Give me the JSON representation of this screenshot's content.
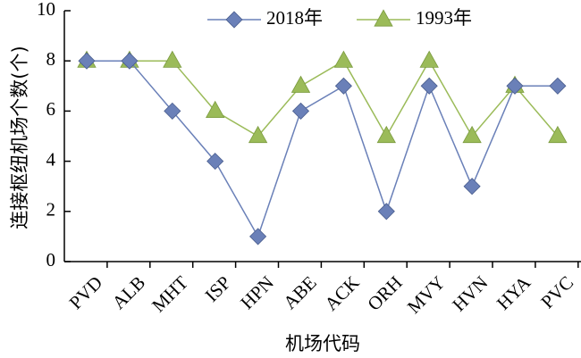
{
  "chart_data": {
    "type": "line",
    "categories": [
      "PVD",
      "ALB",
      "MHT",
      "ISP",
      "HPN",
      "ABE",
      "ACK",
      "ORH",
      "MVY",
      "HVN",
      "HYA",
      "PVC"
    ],
    "series": [
      {
        "name": "2018年",
        "values": [
          8,
          8,
          6,
          4,
          1,
          6,
          7,
          2,
          7,
          3,
          7,
          7
        ],
        "color": "#6a80b8",
        "marker": "diamond"
      },
      {
        "name": "1993年",
        "values": [
          8,
          8,
          8,
          6,
          5,
          7,
          8,
          5,
          8,
          5,
          7,
          5
        ],
        "color": "#9bbb59",
        "marker": "triangle"
      }
    ],
    "xlabel": "机场代码",
    "ylabel": "连接枢纽机场个数(个)",
    "ylim": [
      0,
      10
    ],
    "yticks": [
      0,
      2,
      4,
      6,
      8,
      10
    ],
    "legend_position": "top",
    "grid": false
  }
}
